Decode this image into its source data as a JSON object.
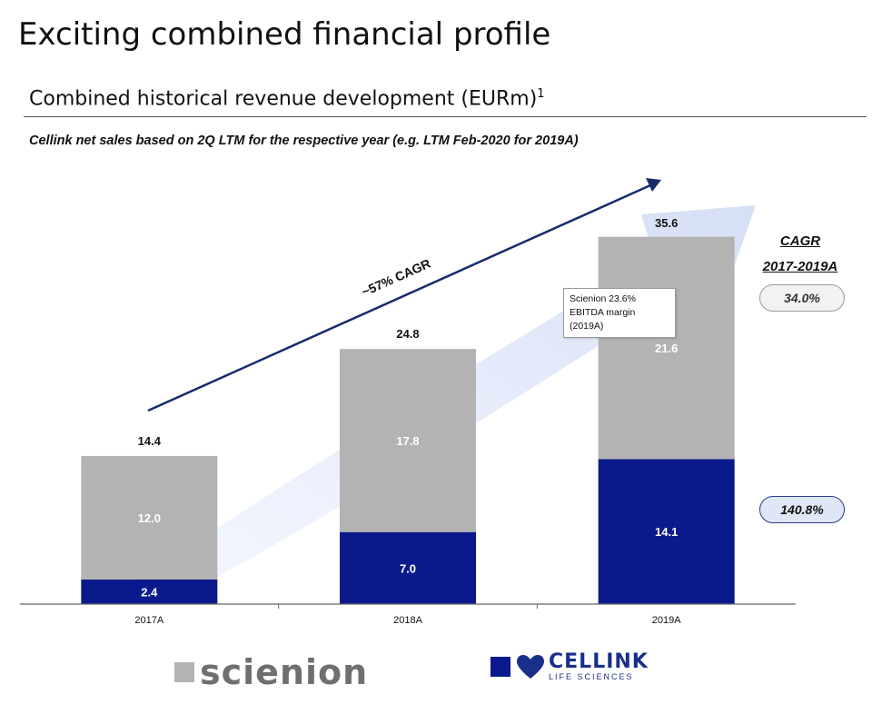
{
  "header": {
    "title": "Exciting combined financial profile",
    "subtitle": "Combined historical revenue development (EURm)",
    "subtitle_sup": "1",
    "note": "Cellink net sales based on 2Q LTM for the respective year (e.g. LTM Feb-2020 for 2019A)"
  },
  "chart_data": {
    "type": "bar",
    "stacked": true,
    "categories": [
      "2017A",
      "2018A",
      "2019A"
    ],
    "series": [
      {
        "name": "CELLINK LIFE SCIENCES",
        "values": [
          2.4,
          7.0,
          14.1
        ],
        "color": "#0a1a8c",
        "label_color": "#ffffff"
      },
      {
        "name": "scienion",
        "values": [
          12.0,
          17.8,
          21.6
        ],
        "color": "#b3b3b3",
        "label_color": "#ffffff"
      }
    ],
    "totals": [
      14.4,
      24.8,
      35.6
    ],
    "ylim": [
      0,
      40
    ],
    "annotations": {
      "trend_label": "~57% CAGR",
      "callout": [
        "Scienion 23.6%",
        "EBITDA margin",
        "(2019A)"
      ]
    },
    "cagr": {
      "heading_line1": "CAGR",
      "heading_line2": "2017-2019A",
      "scienion": "34.0%",
      "cellink": "140.8%"
    }
  },
  "legend": {
    "scienion_logo": "scienion",
    "cellink_logo": "CELLINK",
    "cellink_sub": "LIFE SCIENCES"
  }
}
